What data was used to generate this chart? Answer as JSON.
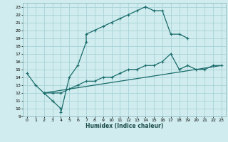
{
  "xlabel": "Humidex (Indice chaleur)",
  "bg_color": "#d0ecee",
  "grid_color": "#a8d4d8",
  "line_color": "#1a6b6b",
  "xlim": [
    -0.5,
    23.5
  ],
  "ylim": [
    9,
    23.5
  ],
  "xticks": [
    0,
    1,
    2,
    3,
    4,
    5,
    6,
    7,
    8,
    9,
    10,
    11,
    12,
    13,
    14,
    15,
    16,
    17,
    18,
    19,
    20,
    21,
    22,
    23
  ],
  "yticks": [
    9,
    10,
    11,
    12,
    13,
    14,
    15,
    16,
    17,
    18,
    19,
    20,
    21,
    22,
    23
  ],
  "line1_x": [
    0,
    1,
    2,
    3,
    4,
    4,
    5,
    6,
    7,
    7,
    8,
    9,
    10,
    11,
    12,
    13,
    14,
    14,
    15,
    16,
    17,
    18,
    19
  ],
  "line1_y": [
    14.5,
    13,
    12,
    11,
    10,
    9.5,
    14,
    15.5,
    18.5,
    19.5,
    20,
    20.5,
    21,
    21.5,
    22,
    22.5,
    23,
    23,
    22.5,
    22.5,
    19.5,
    19.5,
    19
  ],
  "line2_x": [
    2,
    3,
    4,
    5,
    6,
    7,
    8,
    9,
    10,
    11,
    12,
    13,
    14,
    15,
    16,
    17,
    18,
    19,
    20,
    21,
    22,
    23
  ],
  "line2_y": [
    12,
    12,
    12,
    12.5,
    13,
    13.5,
    13.5,
    14,
    14,
    14.5,
    15,
    15,
    15.5,
    15.5,
    16,
    17,
    15,
    15.5,
    15,
    15,
    15.5,
    15.5
  ],
  "line3_x": [
    2,
    23
  ],
  "line3_y": [
    12,
    15.5
  ]
}
